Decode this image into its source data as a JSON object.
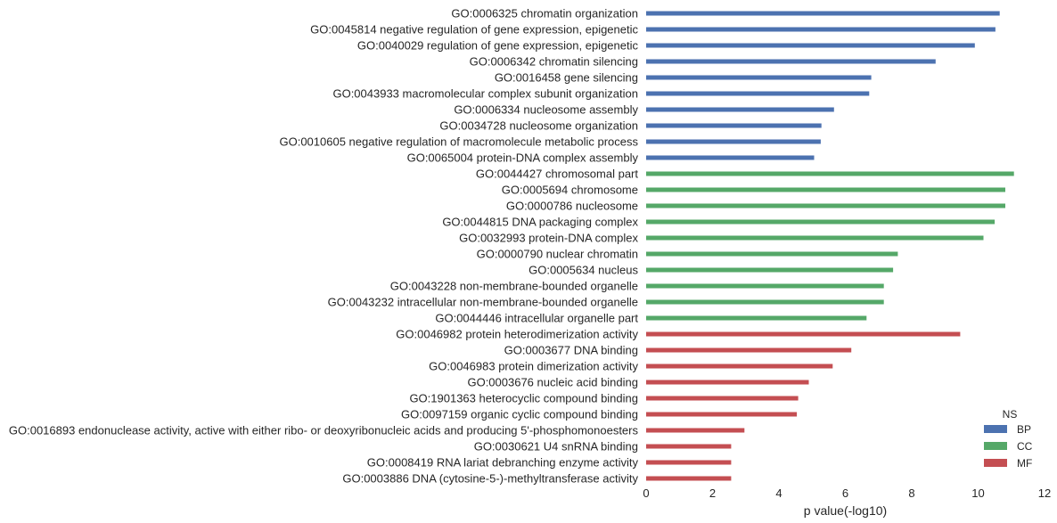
{
  "chart_data": {
    "type": "bar",
    "orientation": "horizontal",
    "xlabel": "p value(-log10)",
    "xlim": [
      0,
      12
    ],
    "xticks": [
      0,
      2,
      4,
      6,
      8,
      10,
      12
    ],
    "grid": false,
    "legend": {
      "title": "NS",
      "placement": "bottom-right",
      "entries": [
        {
          "name": "BP",
          "color": "#4c72b0"
        },
        {
          "name": "CC",
          "color": "#55a868"
        },
        {
          "name": "MF",
          "color": "#c44e52"
        }
      ]
    },
    "rows": [
      {
        "label": "GO:0006325 chromatin organization",
        "ns": "BP",
        "value": 10.65
      },
      {
        "label": "GO:0045814 negative regulation of gene expression, epigenetic",
        "ns": "BP",
        "value": 10.52
      },
      {
        "label": "GO:0040029 regulation of gene expression, epigenetic",
        "ns": "BP",
        "value": 9.9
      },
      {
        "label": "GO:0006342 chromatin silencing",
        "ns": "BP",
        "value": 8.72
      },
      {
        "label": "GO:0016458 gene silencing",
        "ns": "BP",
        "value": 6.78
      },
      {
        "label": "GO:0043933 macromolecular complex subunit organization",
        "ns": "BP",
        "value": 6.72
      },
      {
        "label": "GO:0006334 nucleosome assembly",
        "ns": "BP",
        "value": 5.66
      },
      {
        "label": "GO:0034728 nucleosome organization",
        "ns": "BP",
        "value": 5.28
      },
      {
        "label": "GO:0010605 negative regulation of macromolecule metabolic process",
        "ns": "BP",
        "value": 5.26
      },
      {
        "label": "GO:0065004 protein-DNA complex assembly",
        "ns": "BP",
        "value": 5.06
      },
      {
        "label": "GO:0044427 chromosomal part",
        "ns": "CC",
        "value": 11.08
      },
      {
        "label": "GO:0005694 chromosome",
        "ns": "CC",
        "value": 10.82
      },
      {
        "label": "GO:0000786 nucleosome",
        "ns": "CC",
        "value": 10.82
      },
      {
        "label": "GO:0044815 DNA packaging complex",
        "ns": "CC",
        "value": 10.5
      },
      {
        "label": "GO:0032993 protein-DNA complex",
        "ns": "CC",
        "value": 10.16
      },
      {
        "label": "GO:0000790 nuclear chromatin",
        "ns": "CC",
        "value": 7.58
      },
      {
        "label": "GO:0005634 nucleus",
        "ns": "CC",
        "value": 7.44
      },
      {
        "label": "GO:0043228 non-membrane-bounded organelle",
        "ns": "CC",
        "value": 7.16
      },
      {
        "label": "GO:0043232 intracellular non-membrane-bounded organelle",
        "ns": "CC",
        "value": 7.16
      },
      {
        "label": "GO:0044446 intracellular organelle part",
        "ns": "CC",
        "value": 6.64
      },
      {
        "label": "GO:0046982 protein heterodimerization activity",
        "ns": "MF",
        "value": 9.46
      },
      {
        "label": "GO:0003677 DNA binding",
        "ns": "MF",
        "value": 6.18
      },
      {
        "label": "GO:0046983 protein dimerization activity",
        "ns": "MF",
        "value": 5.62
      },
      {
        "label": "GO:0003676 nucleic acid binding",
        "ns": "MF",
        "value": 4.9
      },
      {
        "label": "GO:1901363 heterocyclic compound binding",
        "ns": "MF",
        "value": 4.58
      },
      {
        "label": "GO:0097159 organic cyclic compound binding",
        "ns": "MF",
        "value": 4.54
      },
      {
        "label": "GO:0016893 endonuclease activity, active with either ribo- or deoxyribonucleic acids and producing 5'-phosphomonoesters",
        "ns": "MF",
        "value": 2.96
      },
      {
        "label": "GO:0030621 U4 snRNA binding",
        "ns": "MF",
        "value": 2.56
      },
      {
        "label": "GO:0008419 RNA lariat debranching enzyme activity",
        "ns": "MF",
        "value": 2.56
      },
      {
        "label": "GO:0003886 DNA (cytosine-5-)-methyltransferase activity",
        "ns": "MF",
        "value": 2.56
      }
    ]
  }
}
